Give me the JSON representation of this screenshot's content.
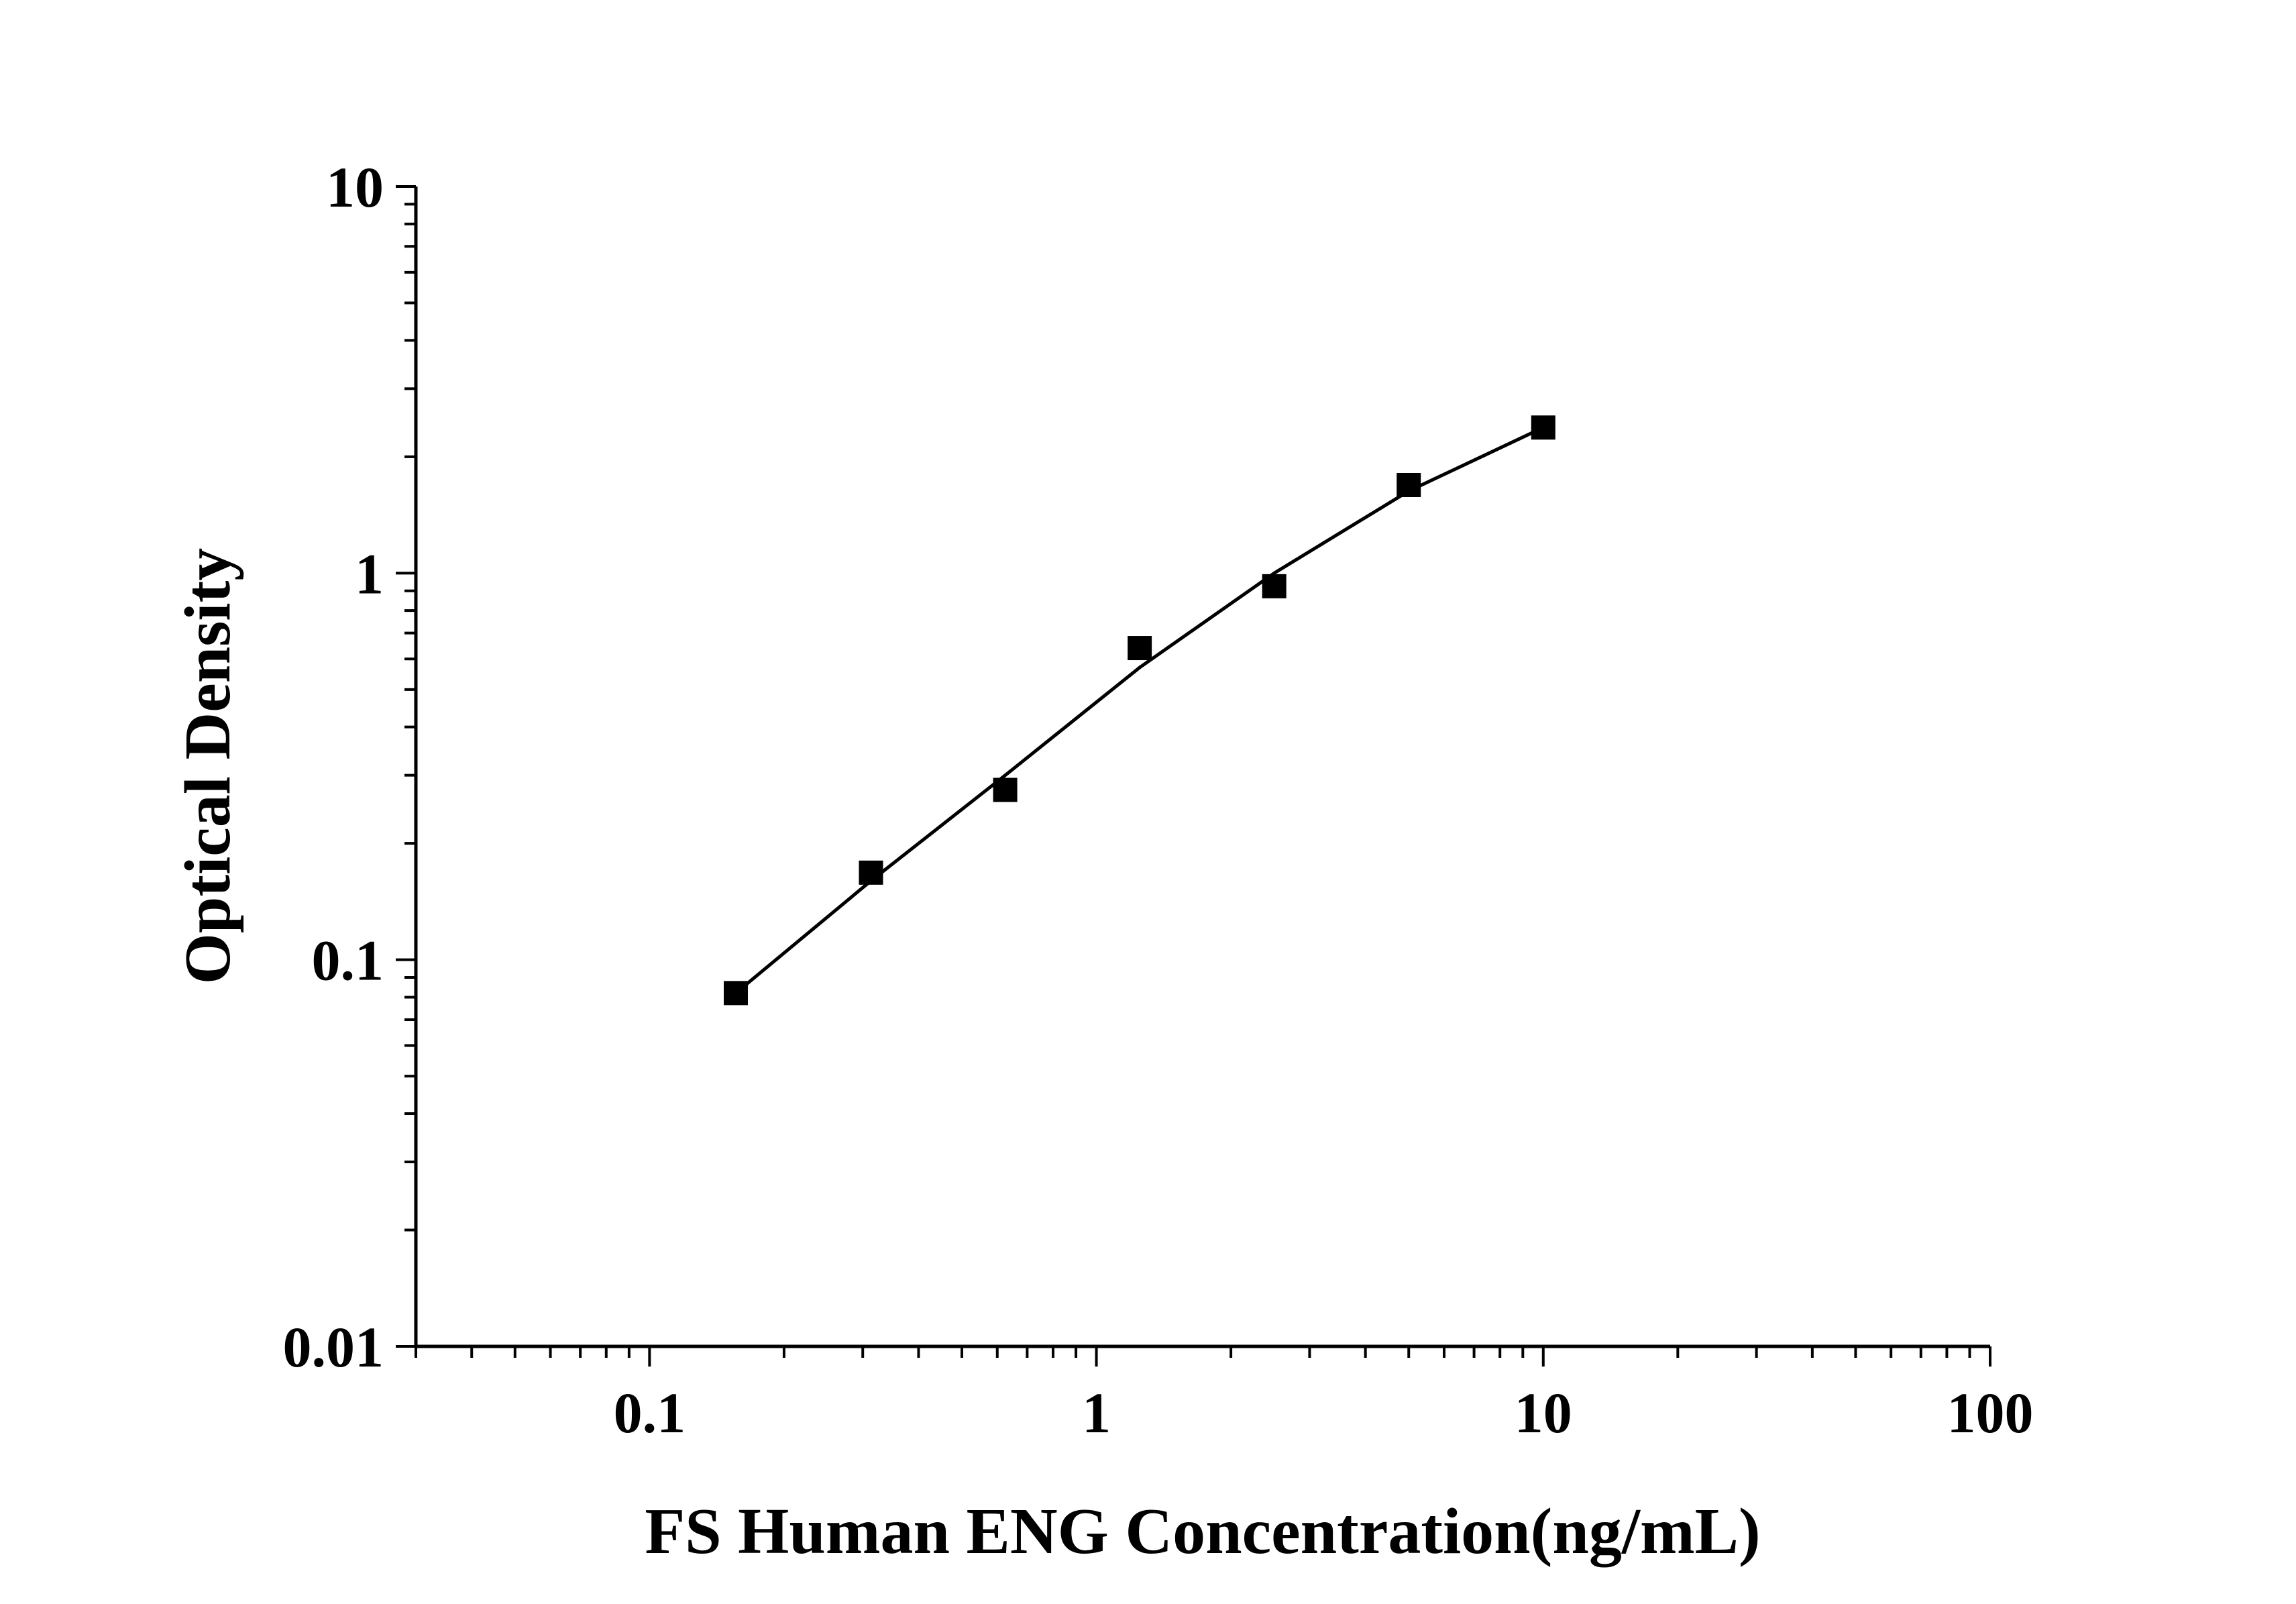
{
  "chart_data": {
    "type": "scatter",
    "title": "",
    "xlabel": "FS Human ENG Concentration(ng/mL)",
    "ylabel": "Optical Density",
    "xscale": "log",
    "yscale": "log",
    "xlim": [
      0.03,
      100
    ],
    "ylim": [
      0.01,
      10
    ],
    "x_tick_labels": [
      "0.1",
      "1",
      "10",
      "100"
    ],
    "y_tick_labels": [
      "0.01",
      "0.1",
      "1",
      "10"
    ],
    "grid": false,
    "legend": "none",
    "marker_color": "#000000",
    "series": [
      {
        "marker": "square",
        "x": [
          0.156,
          0.313,
          0.625,
          1.25,
          2.5,
          5,
          10
        ],
        "y": [
          0.082,
          0.168,
          0.275,
          0.64,
          0.925,
          1.69,
          2.38
        ]
      }
    ],
    "fit_curve": {
      "x": [
        0.156,
        0.313,
        0.625,
        1.25,
        2.5,
        5,
        10
      ],
      "y": [
        0.082,
        0.16,
        0.3,
        0.57,
        1.0,
        1.63,
        2.38
      ]
    }
  }
}
